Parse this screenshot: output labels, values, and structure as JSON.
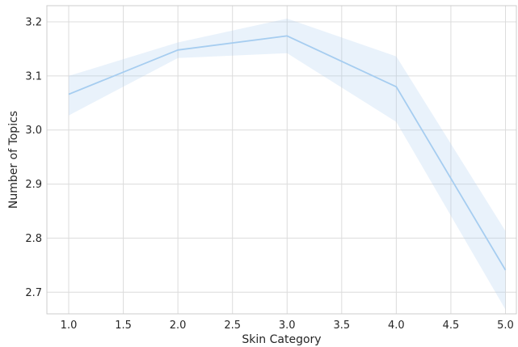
{
  "chart_data": {
    "type": "line",
    "title": "",
    "xlabel": "Skin Category",
    "ylabel": "Number of Topics",
    "xlim": [
      0.8,
      5.1
    ],
    "ylim": [
      2.66,
      3.23
    ],
    "xticks": [
      1.0,
      1.5,
      2.0,
      2.5,
      3.0,
      3.5,
      4.0,
      4.5,
      5.0
    ],
    "xtick_labels": [
      "1.0",
      "1.5",
      "2.0",
      "2.5",
      "3.0",
      "3.5",
      "4.0",
      "4.5",
      "5.0"
    ],
    "yticks": [
      2.7,
      2.8,
      2.9,
      3.0,
      3.1,
      3.2
    ],
    "ytick_labels": [
      "2.7",
      "2.8",
      "2.9",
      "3.0",
      "3.1",
      "3.2"
    ],
    "grid": true,
    "legend": "none",
    "series": [
      {
        "x": [
          1.0,
          2.0,
          3.0,
          4.0,
          5.0
        ],
        "values": [
          3.066,
          3.148,
          3.174,
          3.08,
          2.741
        ],
        "ci_lower": [
          3.027,
          3.133,
          3.142,
          3.015,
          2.668
        ],
        "ci_upper": [
          3.1,
          3.162,
          3.206,
          3.136,
          2.813
        ],
        "color": "#a6cdf0"
      }
    ]
  }
}
